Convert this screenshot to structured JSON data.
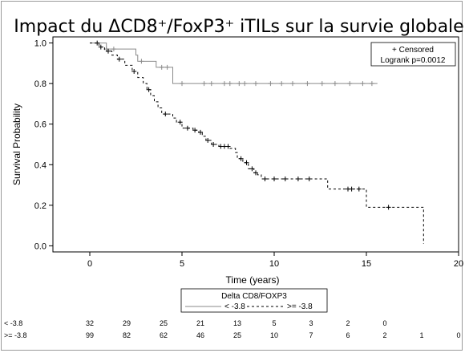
{
  "chart_data": {
    "type": "line",
    "title": "Impact du ΔCD8⁺/FoxP3⁺ iTILs sur la survie globale",
    "xlabel": "Time (years)",
    "ylabel": "Survival Probability",
    "xlim": [
      -2,
      20
    ],
    "ylim": [
      -0.03,
      1.03
    ],
    "xticks": [
      "0",
      "5",
      "10",
      "15",
      "20"
    ],
    "yticks": [
      "0.0",
      "0.2",
      "0.4",
      "0.6",
      "0.8",
      "1.0"
    ],
    "grid": false,
    "censored_label": "+ Censored",
    "logrank_text": "Logrank p=0.0012",
    "legend_title": "Delta CD8/FOXP3",
    "series": [
      {
        "name": "< -3.8",
        "style": "solid",
        "color": "#8a8a8a",
        "steps": [
          [
            0,
            1.0
          ],
          [
            0.9,
            0.97
          ],
          [
            2.5,
            0.94
          ],
          [
            2.6,
            0.91
          ],
          [
            3.6,
            0.88
          ],
          [
            4.5,
            0.8
          ],
          [
            15.6,
            0.8
          ]
        ],
        "censored_x": [
          0.9,
          1.3,
          2.8,
          3.9,
          4.2,
          5.0,
          6.2,
          6.6,
          7.3,
          7.6,
          8.1,
          8.4,
          9.0,
          9.8,
          10.4,
          11.0,
          11.8,
          12.6,
          13.3,
          14.1,
          14.8,
          15.3
        ]
      },
      {
        "name": ">= -3.8",
        "style": "dashed",
        "color": "#000000",
        "steps": [
          [
            0,
            1.0
          ],
          [
            0.5,
            0.98
          ],
          [
            0.8,
            0.96
          ],
          [
            1.2,
            0.94
          ],
          [
            1.5,
            0.92
          ],
          [
            1.9,
            0.89
          ],
          [
            2.3,
            0.86
          ],
          [
            2.6,
            0.83
          ],
          [
            2.9,
            0.8
          ],
          [
            3.1,
            0.77
          ],
          [
            3.3,
            0.74
          ],
          [
            3.5,
            0.71
          ],
          [
            3.7,
            0.68
          ],
          [
            3.9,
            0.65
          ],
          [
            4.5,
            0.63
          ],
          [
            4.7,
            0.61
          ],
          [
            5.0,
            0.58
          ],
          [
            5.6,
            0.57
          ],
          [
            5.9,
            0.56
          ],
          [
            6.1,
            0.54
          ],
          [
            6.3,
            0.52
          ],
          [
            6.6,
            0.5
          ],
          [
            7.0,
            0.49
          ],
          [
            7.6,
            0.48
          ],
          [
            7.9,
            0.46
          ],
          [
            8.0,
            0.43
          ],
          [
            8.3,
            0.41
          ],
          [
            8.6,
            0.38
          ],
          [
            8.9,
            0.36
          ],
          [
            9.1,
            0.35
          ],
          [
            9.3,
            0.33
          ],
          [
            12.9,
            0.28
          ],
          [
            15.0,
            0.19
          ],
          [
            18.1,
            0.01
          ]
        ],
        "censored_x": [
          0.4,
          0.6,
          1.0,
          1.6,
          2.4,
          3.2,
          4.1,
          4.9,
          5.3,
          5.7,
          6.0,
          6.4,
          6.7,
          7.1,
          7.3,
          7.5,
          8.2,
          8.5,
          8.8,
          9.0,
          9.5,
          10.0,
          10.6,
          11.3,
          11.9,
          14.0,
          14.2,
          14.6,
          16.2
        ]
      }
    ],
    "risk_table": {
      "times": [
        "0",
        "2",
        "4",
        "6",
        "8",
        "10",
        "12",
        "14",
        "16",
        "18",
        "20"
      ],
      "rows": [
        {
          "label": "< -3.8",
          "values": [
            "32",
            "29",
            "25",
            "21",
            "13",
            "5",
            "3",
            "2",
            "0",
            "",
            ""
          ]
        },
        {
          "label": ">= -3.8",
          "values": [
            "99",
            "82",
            "62",
            "46",
            "25",
            "10",
            "7",
            "6",
            "2",
            "1",
            "0"
          ]
        }
      ]
    }
  }
}
